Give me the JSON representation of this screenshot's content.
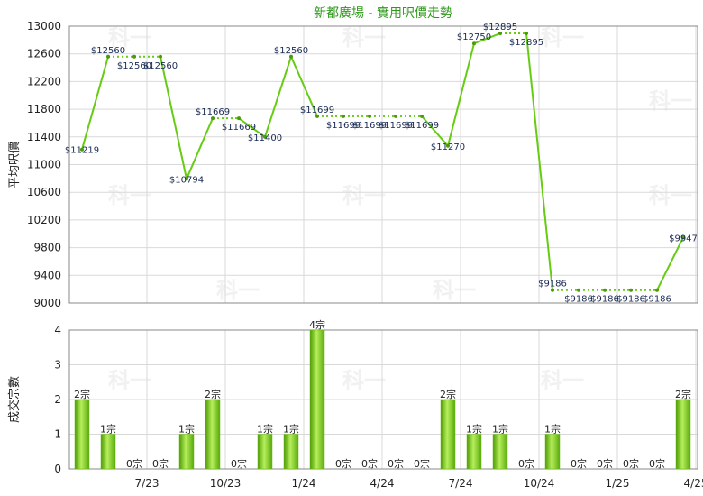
{
  "chart_data": [
    {
      "type": "line",
      "title": "新都廣場 - 實用呎價走勢",
      "ylabel": "平均呎價",
      "ylim": [
        9000,
        13000
      ],
      "yticks": [
        9000,
        9400,
        9800,
        10200,
        10600,
        11000,
        11400,
        11800,
        12200,
        12600,
        13000
      ],
      "x_tick_labels": [
        "7/23",
        "10/23",
        "1/24",
        "4/24",
        "7/24",
        "10/24",
        "1/25",
        "4/25"
      ],
      "values": [
        11219,
        12560,
        12560,
        12560,
        10794,
        11669,
        11669,
        11400,
        12560,
        11699,
        11699,
        11699,
        11699,
        11699,
        11270,
        12750,
        12895,
        12895,
        9186,
        9186,
        9186,
        9186,
        9186,
        9947
      ],
      "value_labels": [
        "$11219",
        "$12560",
        "$12560",
        "$12560",
        "$10794",
        "$11669",
        "$11669",
        "$11400",
        "$12560",
        "$11699",
        "$11699",
        "$11699",
        "$11699",
        "$11699",
        "$11270",
        "$12750",
        "$12895",
        "$12895",
        "$9186",
        "$9186",
        "$9186",
        "$9186",
        "$9186",
        "$9947"
      ],
      "carried_forward": [
        false,
        false,
        true,
        true,
        false,
        false,
        true,
        false,
        false,
        false,
        true,
        true,
        true,
        true,
        false,
        false,
        false,
        true,
        false,
        true,
        true,
        true,
        true,
        false
      ],
      "line_color": "#66cc11",
      "grid": true
    },
    {
      "type": "bar",
      "ylabel": "成交宗數",
      "ylim": [
        0,
        4
      ],
      "yticks": [
        0,
        1,
        2,
        3,
        4
      ],
      "x_tick_labels": [
        "7/23",
        "10/23",
        "1/24",
        "4/24",
        "7/24",
        "10/24",
        "1/25",
        "4/25"
      ],
      "values": [
        2,
        1,
        0,
        0,
        1,
        2,
        0,
        1,
        1,
        4,
        0,
        0,
        0,
        0,
        2,
        1,
        1,
        0,
        1,
        0,
        0,
        0,
        0,
        2
      ],
      "value_labels": [
        "2宗",
        "1宗",
        "0宗",
        "0宗",
        "1宗",
        "2宗",
        "0宗",
        "1宗",
        "1宗",
        "4宗",
        "0宗",
        "0宗",
        "0宗",
        "0宗",
        "2宗",
        "1宗",
        "1宗",
        "0宗",
        "1宗",
        "0宗",
        "0宗",
        "0宗",
        "0宗",
        "2宗"
      ],
      "bar_color": "#66bb11",
      "grid": true
    }
  ],
  "watermark": "科一"
}
